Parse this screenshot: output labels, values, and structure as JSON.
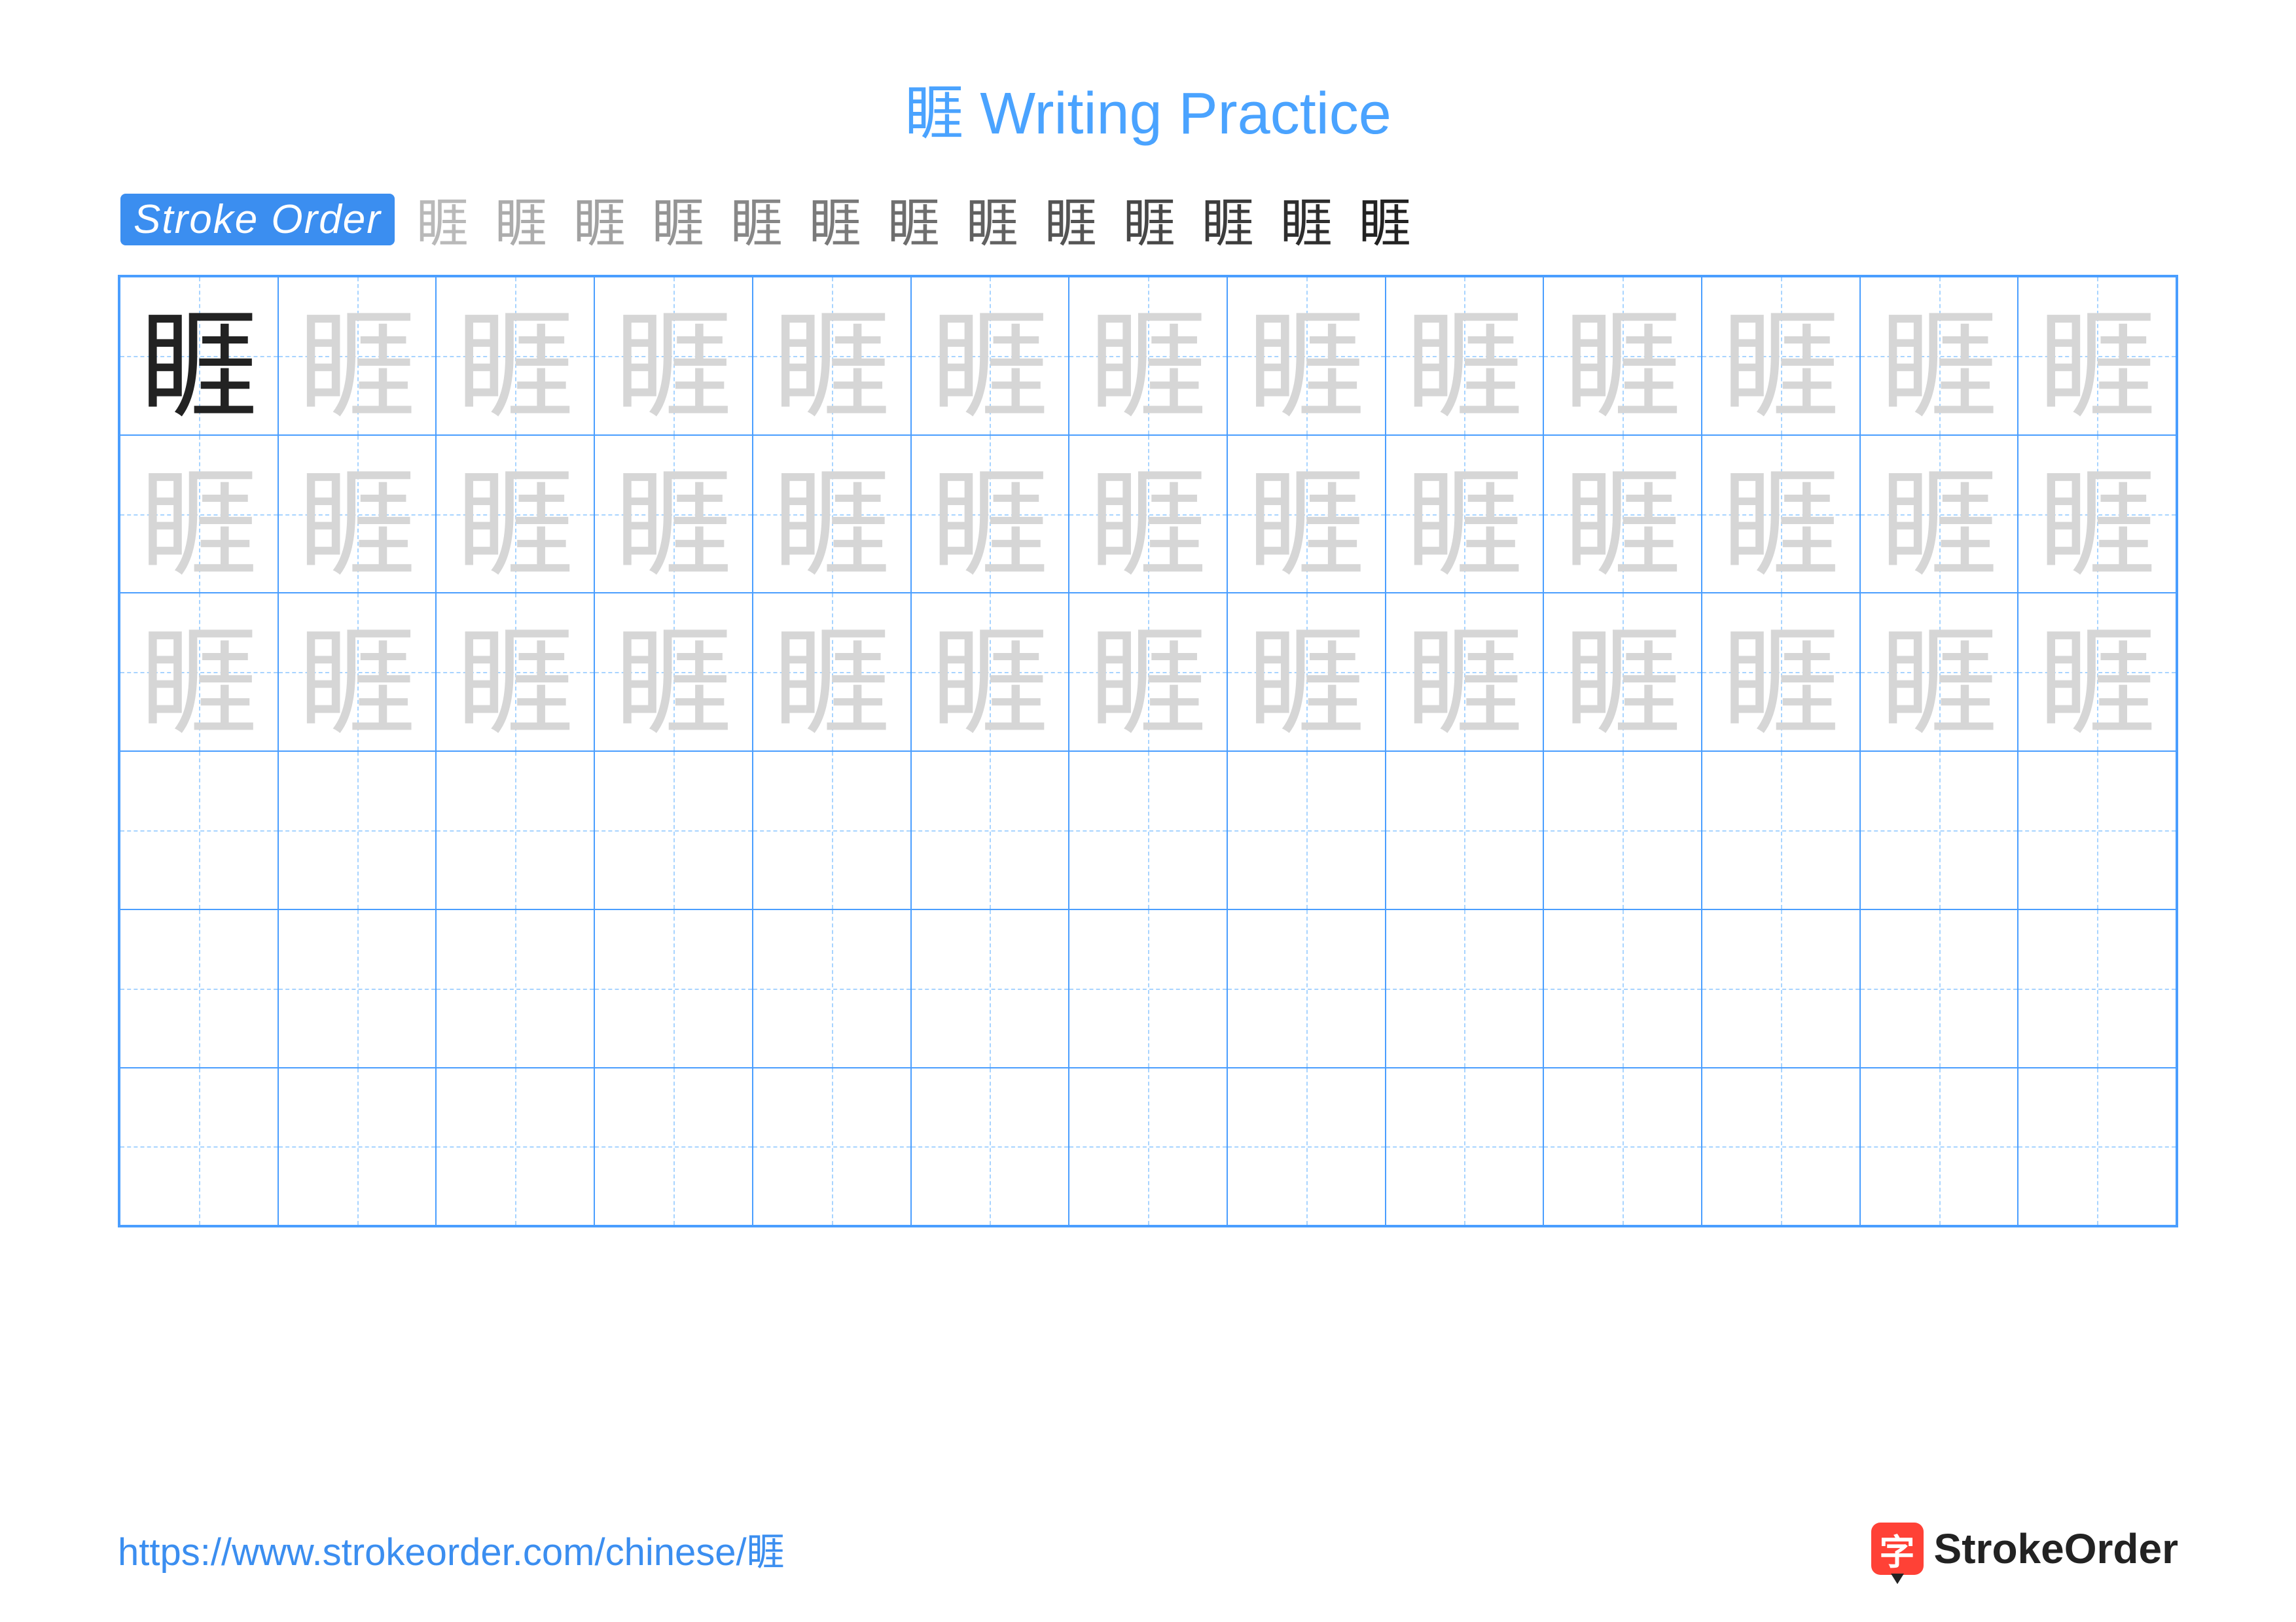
{
  "title_char": "睚",
  "title_suffix": " Writing Practice",
  "title_color": "#4aa3ff",
  "stroke_badge": {
    "label": "Stroke Order",
    "bg": "#3b8ef0",
    "fg": "#ffffff"
  },
  "stroke_steps_count": 13,
  "stroke_step_char": "睚",
  "grid": {
    "cols": 13,
    "rows": 6,
    "border_color": "#4a9eff",
    "guide_color": "#a8d4ff",
    "char": "睚",
    "model_color": "#222222",
    "trace_color": "#d6d6d6",
    "char_fontsize": 180,
    "trace_rows": 3
  },
  "footer_url": "https://www.strokeorder.com/chinese/睚",
  "footer_url_color": "#3b8ef0",
  "logo": {
    "icon_bg": "#ff4136",
    "icon_char": "字",
    "text": "StrokeOrder"
  }
}
